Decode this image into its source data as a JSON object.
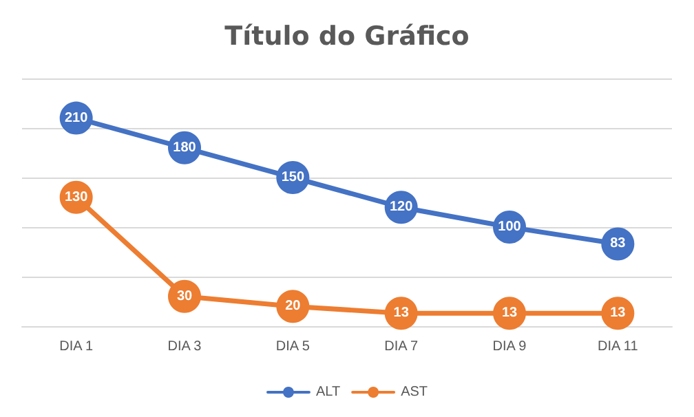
{
  "chart_data": {
    "type": "line",
    "title": "Título do Gráfico",
    "categories": [
      "DIA 1",
      "DIA 3",
      "DIA 5",
      "DIA 7",
      "DIA 9",
      "DIA 11"
    ],
    "series": [
      {
        "name": "ALT",
        "color": "#4472c4",
        "values": [
          210,
          180,
          150,
          120,
          100,
          83
        ]
      },
      {
        "name": "AST",
        "color": "#ed7d31",
        "values": [
          130,
          30,
          20,
          13,
          13,
          13
        ]
      }
    ],
    "ylim": [
      0,
      250
    ],
    "yticks": [
      0,
      50,
      100,
      150,
      200,
      250
    ],
    "tick_labels": "x",
    "grid": "y",
    "legend": "bottom",
    "marker": "circle",
    "line_style": "solid",
    "data_labels": true
  }
}
